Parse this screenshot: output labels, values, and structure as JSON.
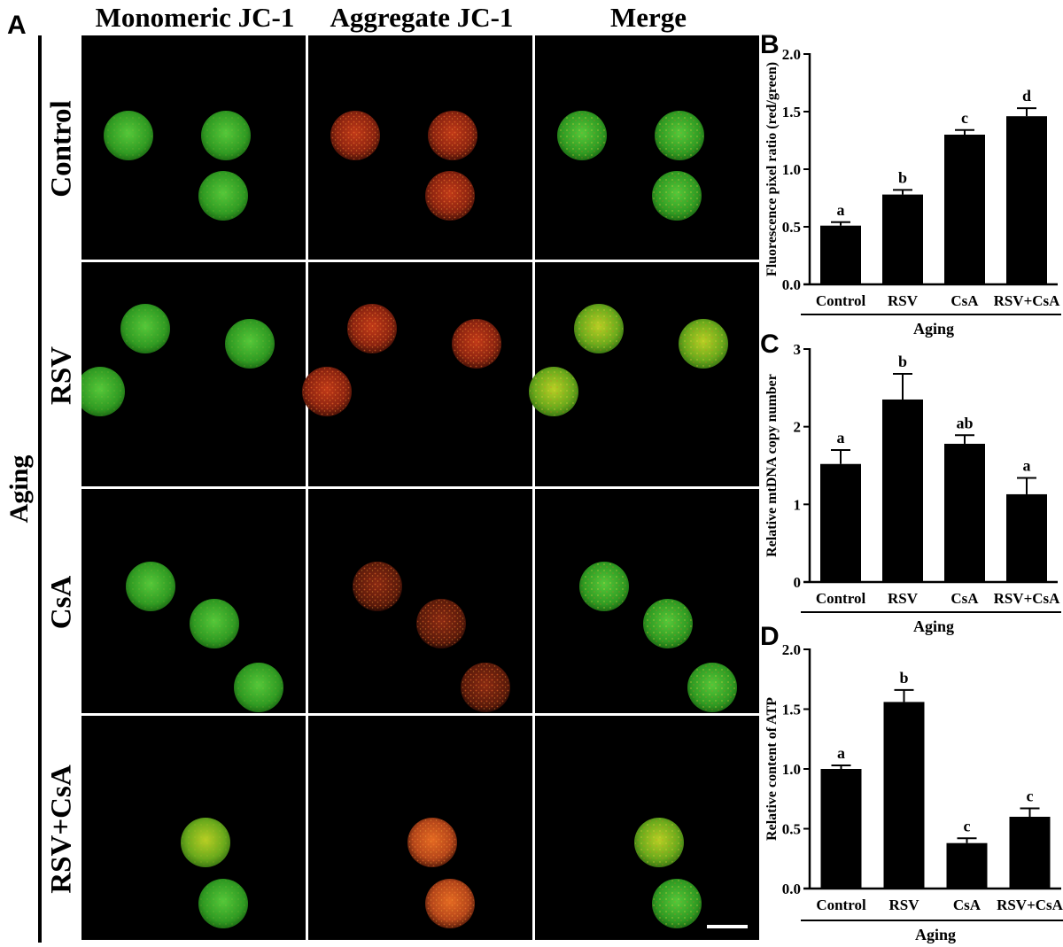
{
  "panel_letters": {
    "a": "A",
    "b": "B",
    "c": "C",
    "d": "D"
  },
  "columns": [
    "Monomeric JC-1",
    "Aggregate JC-1",
    "Merge"
  ],
  "rows": [
    "Control",
    "RSV",
    "CsA",
    "RSV+CsA"
  ],
  "side_label": "Aging",
  "colors": {
    "green": "#3fae2a",
    "yellow_green": "#8dbb1d",
    "red": "#d8431e",
    "orange": "#e3681f",
    "scale_bar": "#ffffff",
    "bar_fill": "#000000"
  },
  "chart_data": [
    {
      "panel": "B",
      "type": "bar",
      "ylabel": "Fluorescence pixel ratio (red/green)",
      "xlabel": "Aging",
      "categories": [
        "Control",
        "RSV",
        "CsA",
        "RSV+CsA"
      ],
      "values": [
        0.51,
        0.78,
        1.3,
        1.46
      ],
      "errors": [
        0.03,
        0.04,
        0.04,
        0.07
      ],
      "letters": [
        "a",
        "b",
        "c",
        "d"
      ],
      "ylim": [
        0,
        2.0
      ],
      "yticks": [
        "0.0",
        "0.5",
        "1.0",
        "1.5",
        "2.0"
      ],
      "ytick_values": [
        0,
        0.5,
        1.0,
        1.5,
        2.0
      ]
    },
    {
      "panel": "C",
      "type": "bar",
      "ylabel": "Relative mtDNA copy number",
      "xlabel": "Aging",
      "categories": [
        "Control",
        "RSV",
        "CsA",
        "RSV+CsA"
      ],
      "values": [
        1.52,
        2.35,
        1.78,
        1.13
      ],
      "errors": [
        0.18,
        0.33,
        0.11,
        0.21
      ],
      "letters": [
        "a",
        "b",
        "ab",
        "a"
      ],
      "ylim": [
        0,
        3
      ],
      "yticks": [
        "0",
        "1",
        "2",
        "3"
      ],
      "ytick_values": [
        0,
        1,
        2,
        3
      ]
    },
    {
      "panel": "D",
      "type": "bar",
      "ylabel": "Relative content of ATP",
      "xlabel": "Aging",
      "categories": [
        "Control",
        "RSV",
        "CsA",
        "RSV+CsA"
      ],
      "values": [
        1.0,
        1.56,
        0.38,
        0.6
      ],
      "errors": [
        0.03,
        0.1,
        0.04,
        0.07
      ],
      "letters": [
        "a",
        "b",
        "c",
        "c"
      ],
      "ylim": [
        0,
        2.0
      ],
      "yticks": [
        "0.0",
        "0.5",
        "1.0",
        "1.5",
        "2.0"
      ],
      "ytick_values": [
        0,
        0.5,
        1.0,
        1.5,
        2.0
      ]
    }
  ]
}
